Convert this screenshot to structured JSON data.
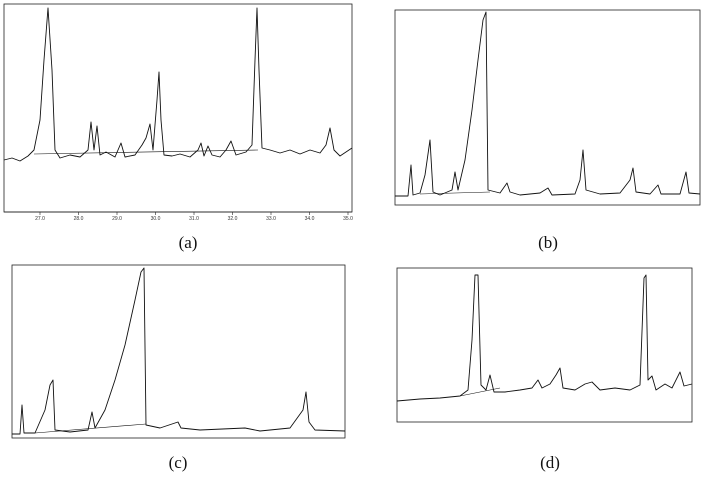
{
  "figure": {
    "panels": [
      {
        "caption": "(a)",
        "x_tick_labels": [
          "27.0",
          "28.0",
          "29.0",
          "30.0",
          "31.0",
          "32.0",
          "33.0",
          "34.0",
          "35.0"
        ]
      },
      {
        "caption": "(b)"
      },
      {
        "caption": "(c)"
      },
      {
        "caption": "(d)"
      }
    ]
  }
}
